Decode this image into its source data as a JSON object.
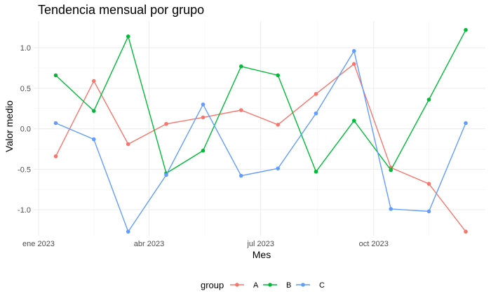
{
  "chart_data": {
    "type": "line",
    "title": "Tendencia mensual por grupo",
    "xlabel": "Mes",
    "ylabel": "Valor medio",
    "x": [
      "2023-01-15",
      "2023-02-15",
      "2023-03-15",
      "2023-04-15",
      "2023-05-15",
      "2023-06-15",
      "2023-07-15",
      "2023-08-15",
      "2023-09-15",
      "2023-10-15",
      "2023-11-15",
      "2023-12-15"
    ],
    "x_ticks": [
      {
        "date": "2023-01-01",
        "label": "ene 2023"
      },
      {
        "date": "2023-04-01",
        "label": "abr 2023"
      },
      {
        "date": "2023-07-01",
        "label": "jul 2023"
      },
      {
        "date": "2023-10-01",
        "label": "oct 2023"
      }
    ],
    "y_ticks": [
      1.0,
      0.5,
      0.0,
      -0.5,
      -1.0
    ],
    "y_tick_labels": [
      "1.0",
      "0.5",
      "0.0",
      "-0.5",
      "-1.0"
    ],
    "ylim": [
      -1.32,
      1.33
    ],
    "grid": true,
    "legend_position": "bottom",
    "legend_title": "group",
    "series": [
      {
        "name": "A",
        "color": "#F8766D",
        "values": [
          -0.34,
          0.59,
          -0.19,
          0.06,
          0.14,
          0.23,
          0.05,
          0.43,
          0.8,
          -0.48,
          -0.68,
          -1.27
        ]
      },
      {
        "name": "B",
        "color": "#00BA38",
        "values": [
          0.66,
          0.22,
          1.14,
          -0.55,
          -0.27,
          0.77,
          0.66,
          -0.53,
          0.1,
          -0.51,
          0.36,
          1.22
        ]
      },
      {
        "name": "C",
        "color": "#619CFF",
        "values": [
          0.07,
          -0.13,
          -1.27,
          -0.57,
          0.3,
          -0.58,
          -0.49,
          0.19,
          0.96,
          -0.99,
          -1.02,
          0.07
        ]
      }
    ]
  }
}
